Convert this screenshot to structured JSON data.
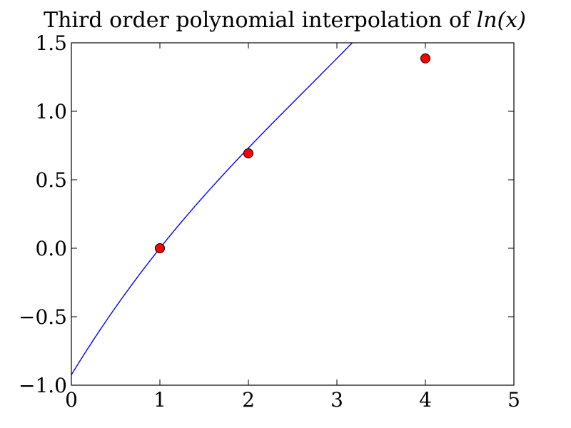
{
  "chart_data": {
    "type": "line",
    "title": "Third order polynomial interpolation of ln(x)",
    "title_parts": {
      "prefix": "Third order polynomial interpolation of ",
      "math": "ln(x)"
    },
    "xlabel": "",
    "ylabel": "",
    "xlim": [
      0,
      5
    ],
    "ylim": [
      -1.0,
      1.5
    ],
    "x_ticks": [
      0,
      1,
      2,
      3,
      4,
      5
    ],
    "x_tick_labels": [
      "0",
      "1",
      "2",
      "3",
      "4",
      "5"
    ],
    "y_ticks": [
      -1.0,
      -0.5,
      0.0,
      0.5,
      1.0,
      1.5
    ],
    "y_tick_labels": [
      "−1.0",
      "−0.5",
      "0.0",
      "0.5",
      "1.0",
      "1.5"
    ],
    "grid": false,
    "series": [
      {
        "kind": "curve",
        "color": "#0000ff",
        "polynomial_coefficients": [
          -0.9242,
          1.0586,
          -0.1535,
          0.0191
        ],
        "x_range": [
          0,
          5
        ]
      },
      {
        "kind": "points",
        "color": "#ff0000",
        "edge_color": "#000000",
        "x": [
          1,
          2,
          4
        ],
        "y": [
          0.0,
          0.693,
          1.386
        ]
      }
    ]
  }
}
